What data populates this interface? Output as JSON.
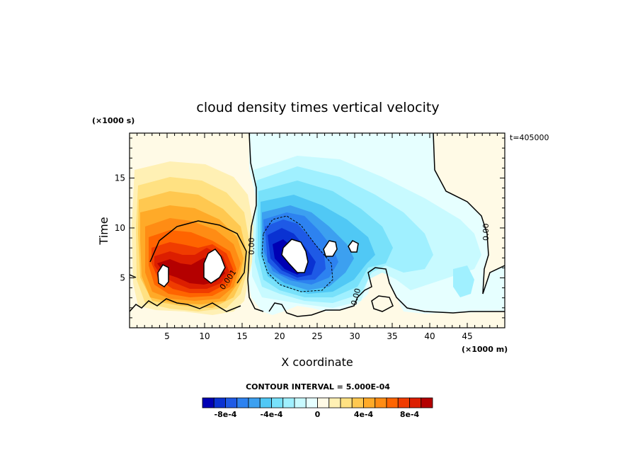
{
  "chart_data": {
    "type": "heatmap",
    "title": "cloud density times vertical velocity",
    "xlabel": "X coordinate",
    "ylabel": "Time",
    "x_units": "(×1000 m)",
    "y_units": "(×1000 s)",
    "time_label": "t=405000",
    "xlim": [
      0,
      50
    ],
    "ylim": [
      0,
      19.5
    ],
    "xticks": [
      5,
      10,
      15,
      20,
      25,
      30,
      35,
      40,
      45
    ],
    "yticks": [
      5,
      10,
      15
    ],
    "contour_interval_text": "CONTOUR INTERVAL = 5.000E-04",
    "contour_labels": [
      "0.001",
      "0.00",
      "0.00",
      "0.00"
    ],
    "colorbar": {
      "levels": [
        -0.001,
        -0.0009,
        -0.0008,
        -0.0007,
        -0.0006,
        -0.0005,
        -0.0004,
        -0.0003,
        -0.0002,
        -0.0001,
        0,
        0.0001,
        0.0002,
        0.0003,
        0.0004,
        0.0005,
        0.0006,
        0.0007,
        0.0008,
        0.0009,
        0.001
      ],
      "colors": [
        "#0000b4",
        "#0a32d2",
        "#1e5ae6",
        "#2d82f0",
        "#3ca0f0",
        "#50c8f5",
        "#78e1fa",
        "#a0f0ff",
        "#c8faff",
        "#e6ffff",
        "#fffae6",
        "#fff0b4",
        "#ffe182",
        "#ffc850",
        "#ffaa28",
        "#ff8c14",
        "#ff6400",
        "#f03c00",
        "#dc1e00",
        "#b40000"
      ],
      "tick_labels": [
        "-8e-4",
        "-4e-4",
        "0",
        "4e-4",
        "8e-4"
      ],
      "tick_values": [
        -0.0008,
        -0.0004,
        0,
        0.0004,
        0.0008
      ]
    }
  }
}
